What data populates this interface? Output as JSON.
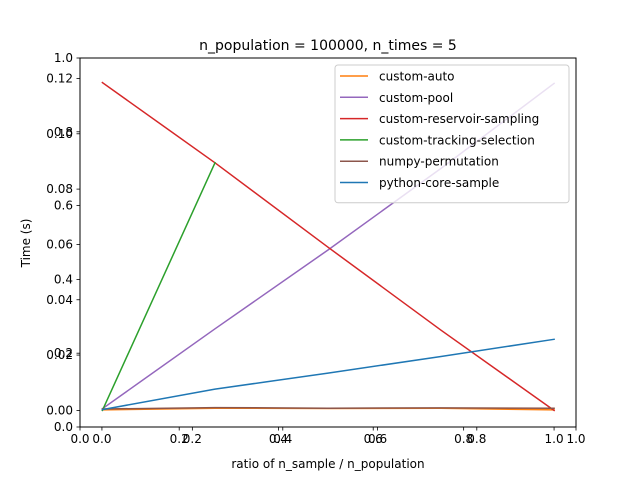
{
  "chart_data": {
    "type": "line",
    "title": "n_population = 100000, n_times = 5",
    "xlabel": "ratio of n_sample / n_population",
    "ylabel": "Time (s)",
    "xlim": [
      -0.0485,
      1.0485
    ],
    "ylim": [
      -0.006,
      0.1274
    ],
    "xticks": [
      "0.0",
      "0.2",
      "0.4",
      "0.6",
      "0.8",
      "1.0"
    ],
    "yticks": [
      "0.00",
      "0.02",
      "0.04",
      "0.06",
      "0.08",
      "0.10",
      "0.12"
    ],
    "frame_axes": {
      "xticks": [
        "0.0",
        "0.2",
        "0.4",
        "0.6",
        "0.8",
        "1.0"
      ],
      "yticks": [
        "0.0",
        "0.2",
        "0.4",
        "0.6",
        "0.8",
        "1.0"
      ]
    },
    "grid": false,
    "legend_position": "top-right",
    "series": [
      {
        "name": "custom-auto",
        "color": "#ff7f0e",
        "x": [
          0.001,
          0.25,
          0.5,
          0.75,
          1.0
        ],
        "y": [
          0.0002,
          0.0008,
          0.0007,
          0.0008,
          0.0002
        ]
      },
      {
        "name": "custom-pool",
        "color": "#9467bd",
        "x": [
          0.001,
          0.25,
          0.5,
          0.75,
          1.0
        ],
        "y": [
          0.0006,
          0.0295,
          0.058,
          0.0875,
          0.1182
        ]
      },
      {
        "name": "custom-reservoir-sampling",
        "color": "#d62728",
        "x": [
          0.001,
          0.25,
          0.5,
          0.75,
          1.0
        ],
        "y": [
          0.1185,
          0.0895,
          0.059,
          0.029,
          0.0
        ]
      },
      {
        "name": "custom-tracking-selection",
        "color": "#2ca02c",
        "x": [
          0.001,
          0.25
        ],
        "y": [
          0.0,
          0.0895
        ]
      },
      {
        "name": "numpy-permutation",
        "color": "#8c564b",
        "x": [
          0.001,
          0.25,
          0.5,
          0.75,
          1.0
        ],
        "y": [
          0.0005,
          0.001,
          0.0008,
          0.0009,
          0.0008
        ]
      },
      {
        "name": "python-core-sample",
        "color": "#1f77b4",
        "x": [
          0.001,
          0.25,
          0.5,
          0.75,
          1.0
        ],
        "y": [
          0.0003,
          0.0077,
          0.0135,
          0.0195,
          0.0257
        ]
      }
    ]
  }
}
